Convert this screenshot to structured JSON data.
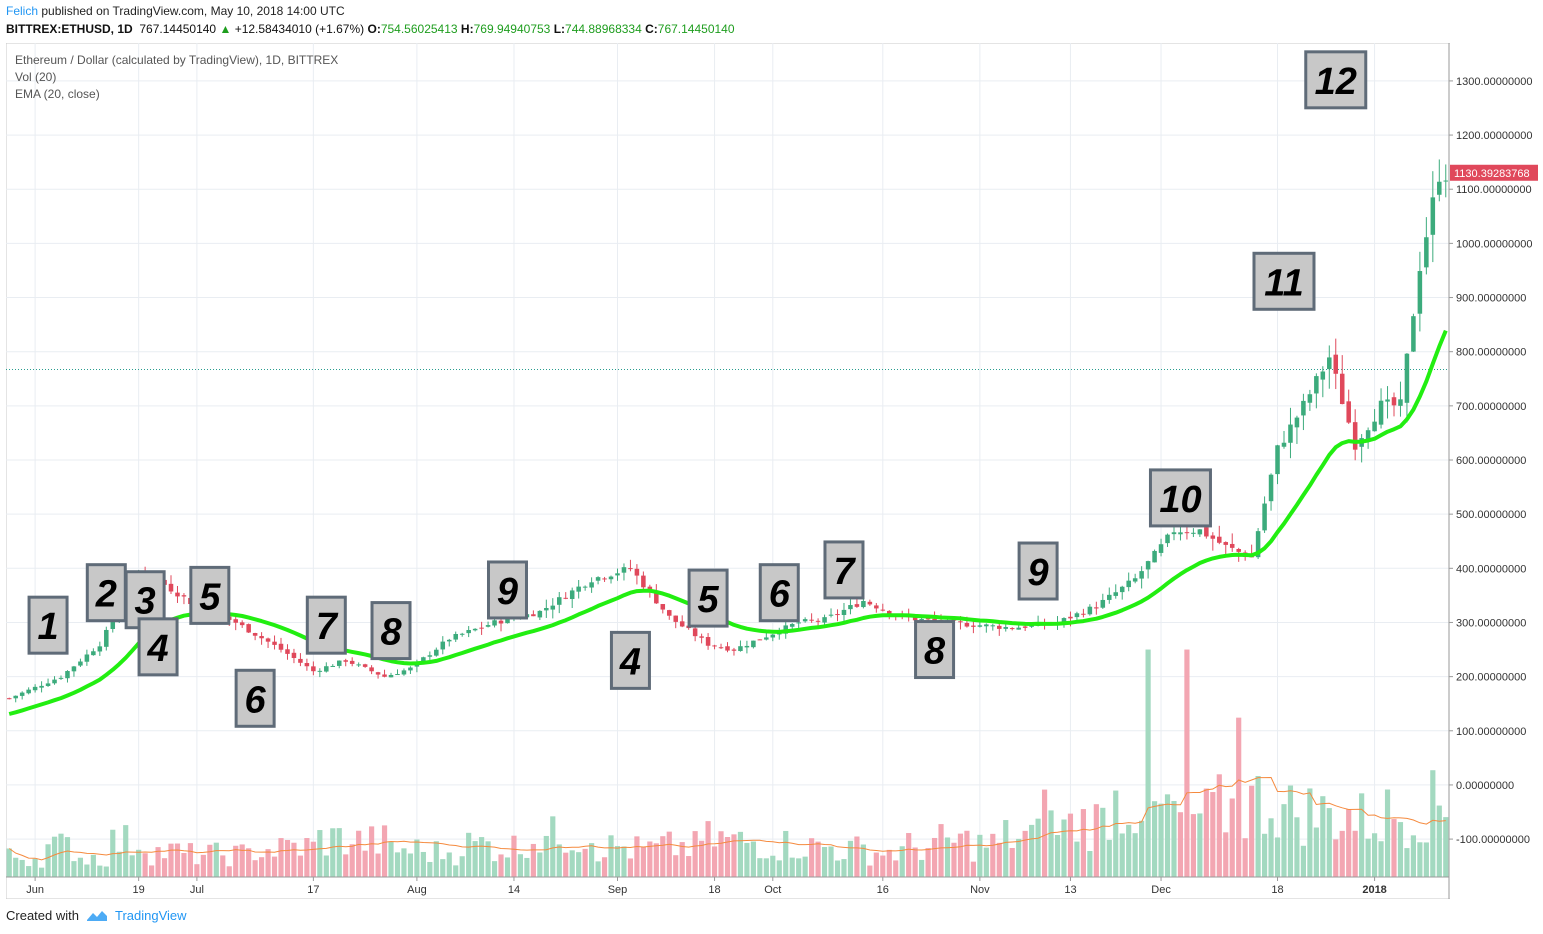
{
  "header": {
    "author": "Felich",
    "published_text": "published on TradingView.com, May 10, 2018 14:00 UTC",
    "symbol": "BITTREX:ETHUSD, 1D",
    "price": "767.14450140",
    "change_arrow": "▲",
    "change": "+12.58434010 (+1.67%)",
    "o_label": "O:",
    "o_value": "754.56025413",
    "h_label": "H:",
    "h_value": "769.94940753",
    "l_label": "L:",
    "l_value": "744.88968334",
    "c_label": "C:",
    "c_value": "767.14450140"
  },
  "legend": {
    "title": "Ethereum / Dollar (calculated by TradingView), 1D, BITTREX",
    "vol": "Vol (20)",
    "ema": "EMA (20, close)"
  },
  "footer": {
    "created_with": "Created with",
    "brand": "TradingView"
  },
  "colors": {
    "up": "#3cab7c",
    "down": "#e0485b",
    "ema": "#22ee11",
    "vol_up": "#a3d9c0",
    "vol_down": "#f3a6b2",
    "vol_ma": "#f58a3e",
    "label_bg": "#c8c8c8",
    "label_border": "#5f6b78",
    "price_tag": "#e0485b"
  },
  "chart_data": {
    "type": "candlestick",
    "title": "Ethereum / Dollar (calculated by TradingView), 1D, BITTREX",
    "price_axis": {
      "ylim": [
        -170,
        1370
      ],
      "ticks": [
        -100,
        0,
        100,
        200,
        300,
        400,
        500,
        600,
        700,
        800,
        900,
        1000,
        1100,
        1200,
        1300
      ],
      "tick_labels": [
        "-100.00000000",
        "0.00000000",
        "100.00000000",
        "200.00000000",
        "300.00000000",
        "400.00000000",
        "500.00000000",
        "600.00000000",
        "700.00000000",
        "800.00000000",
        "900.00000000",
        "1000.00000000",
        "1100.00000000",
        "1200.00000000",
        "1300.00000000"
      ]
    },
    "time_axis": {
      "labels": [
        "Jun",
        "19",
        "Jul",
        "17",
        "Aug",
        "14",
        "Sep",
        "18",
        "Oct",
        "16",
        "Nov",
        "13",
        "Dec",
        "18",
        "2018"
      ],
      "label_day_index": [
        4,
        20,
        29,
        47,
        63,
        78,
        94,
        109,
        118,
        135,
        150,
        164,
        178,
        196,
        211
      ]
    },
    "current_price": 1130.39283768,
    "current_price_label": "1130.39283768",
    "horizontal_line": 767.1445,
    "ema_period": 20,
    "volume_ma_period": 20,
    "price_path_days": [
      0,
      8,
      14,
      20,
      24,
      29,
      35,
      42,
      47,
      52,
      58,
      62,
      68,
      75,
      82,
      90,
      96,
      102,
      108,
      112,
      118,
      122,
      126,
      132,
      138,
      144,
      150,
      155,
      162,
      168,
      174,
      180,
      184,
      188,
      192,
      196,
      200,
      204,
      208,
      212,
      215,
      218,
      221
    ],
    "price_path_values": [
      160,
      200,
      260,
      390,
      370,
      330,
      300,
      250,
      210,
      230,
      200,
      215,
      270,
      300,
      320,
      380,
      400,
      310,
      260,
      250,
      280,
      300,
      305,
      340,
      310,
      300,
      295,
      290,
      300,
      330,
      380,
      470,
      470,
      440,
      420,
      620,
      700,
      790,
      630,
      700,
      700,
      960,
      1130
    ],
    "volume_base": [
      8,
      12,
      8,
      14,
      10,
      9,
      9,
      11,
      12,
      15,
      14,
      11,
      10,
      13,
      12,
      16,
      17,
      12,
      11,
      12,
      15,
      14,
      13,
      12,
      11,
      10,
      12,
      14,
      13,
      16,
      20,
      22,
      30,
      26,
      24,
      27,
      30,
      26,
      25,
      23,
      25,
      28
    ],
    "volume_range": [
      -170,
      250
    ],
    "volume_spike_days": [
      160,
      176,
      182,
      190
    ],
    "annotations": [
      {
        "text": "1",
        "day": 6,
        "price": 295
      },
      {
        "text": "2",
        "day": 15,
        "price": 355
      },
      {
        "text": "3",
        "day": 21,
        "price": 342
      },
      {
        "text": "4",
        "day": 23,
        "price": 255
      },
      {
        "text": "5",
        "day": 31,
        "price": 350
      },
      {
        "text": "6",
        "day": 38,
        "price": 160
      },
      {
        "text": "7",
        "day": 49,
        "price": 295
      },
      {
        "text": "8",
        "day": 59,
        "price": 285
      },
      {
        "text": "9",
        "day": 77,
        "price": 360
      },
      {
        "text": "4",
        "day": 96,
        "price": 230
      },
      {
        "text": "5",
        "day": 108,
        "price": 345
      },
      {
        "text": "6",
        "day": 119,
        "price": 355
      },
      {
        "text": "7",
        "day": 129,
        "price": 397
      },
      {
        "text": "8",
        "day": 143,
        "price": 250
      },
      {
        "text": "9",
        "day": 159,
        "price": 395
      },
      {
        "text": "10",
        "day": 181,
        "price": 530
      },
      {
        "text": "11",
        "day": 197,
        "price": 930
      },
      {
        "text": "12",
        "day": 205,
        "price": 1302
      }
    ]
  }
}
